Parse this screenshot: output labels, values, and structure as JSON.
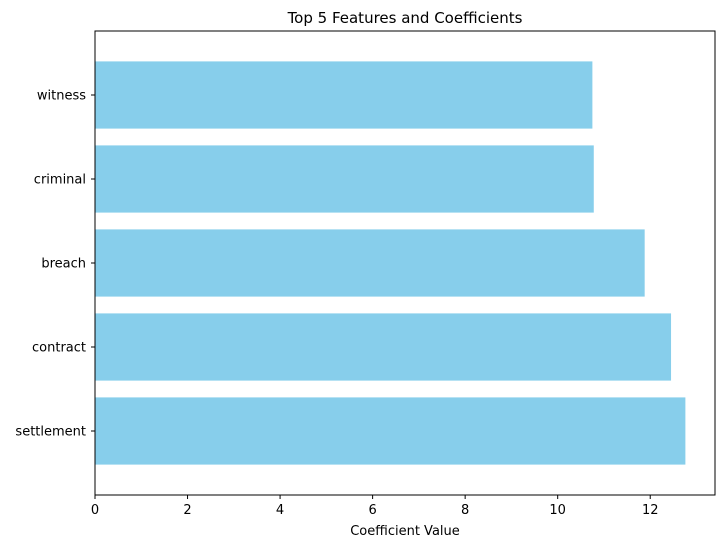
{
  "chart_data": {
    "type": "bar",
    "orientation": "horizontal",
    "title": "Top 5 Features and Coefficients",
    "xlabel": "Coefficient Value",
    "ylabel": "",
    "categories": [
      "witness",
      "criminal",
      "breach",
      "contract",
      "settlement"
    ],
    "values": [
      10.75,
      10.78,
      11.88,
      12.45,
      12.76
    ],
    "xlim": [
      0,
      13.4
    ],
    "xticks": [
      0,
      2,
      4,
      6,
      8,
      10,
      12
    ],
    "bar_color": "#87CEEB",
    "grid": false,
    "legend": "none"
  }
}
